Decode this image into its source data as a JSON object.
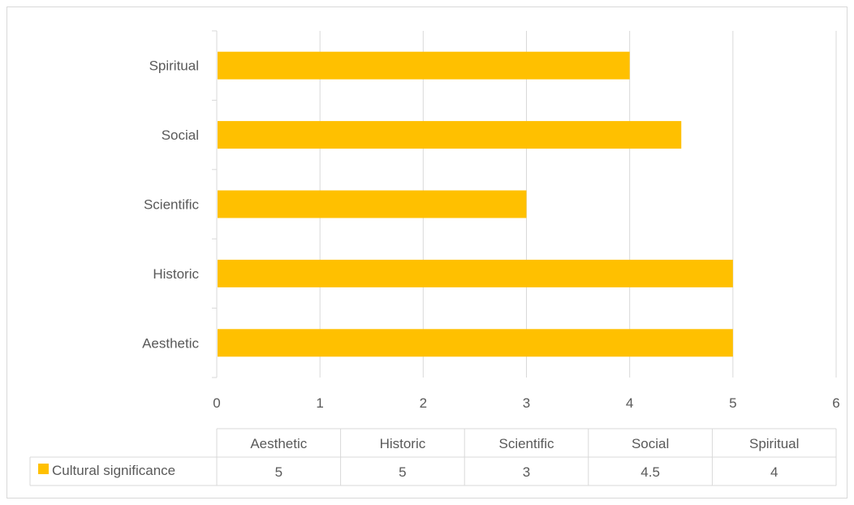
{
  "chart_data": {
    "type": "bar",
    "orientation": "horizontal",
    "categories": [
      "Aesthetic",
      "Historic",
      "Scientific",
      "Social",
      "Spiritual"
    ],
    "series": [
      {
        "name": "Cultural significance",
        "values": [
          5,
          5,
          3,
          4.5,
          4
        ]
      }
    ],
    "xlim": [
      0,
      6
    ],
    "xticks": [
      "0",
      "1",
      "2",
      "3",
      "4",
      "5",
      "6"
    ],
    "grid": true,
    "legend": "data-table",
    "data_table": {
      "headers": [
        "Aesthetic",
        "Historic",
        "Scientific",
        "Social",
        "Spiritual"
      ],
      "row_label": "Cultural significance",
      "row_values": [
        "5",
        "5",
        "3",
        "4.5",
        "4"
      ]
    }
  },
  "colors": {
    "bar": "#FFC000",
    "grid": "#d9d9d9",
    "text": "#595959"
  }
}
